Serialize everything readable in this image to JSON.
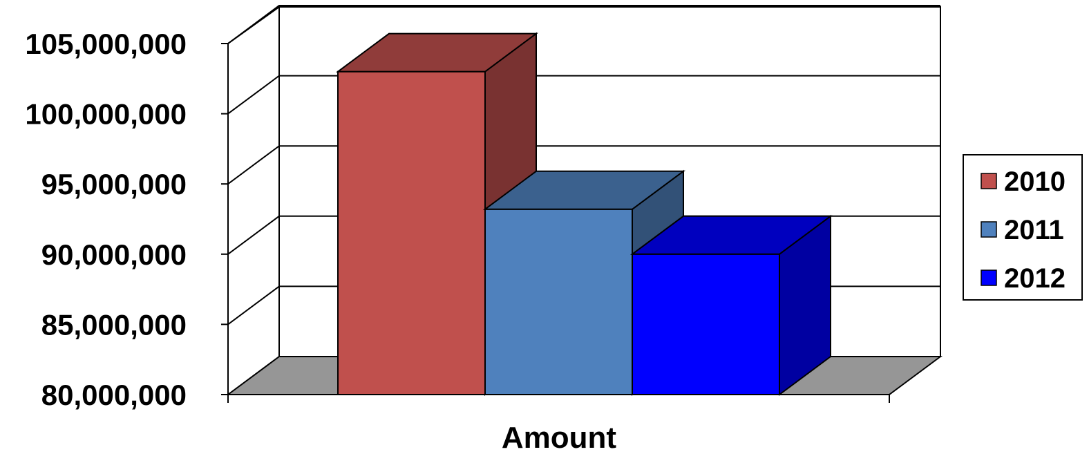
{
  "chart_data": {
    "type": "bar",
    "style": "3d-clustered-column",
    "categories": [
      "Amount"
    ],
    "series": [
      {
        "name": "2010",
        "values": [
          103000000
        ],
        "color": "#c0504d"
      },
      {
        "name": "2011",
        "values": [
          93200000
        ],
        "color": "#4f81bd"
      },
      {
        "name": "2012",
        "values": [
          90000000
        ],
        "color": "#0000ff"
      }
    ],
    "yticks": [
      "80,000,000",
      "85,000,000",
      "90,000,000",
      "95,000,000",
      "100,000,000",
      "105,000,000"
    ],
    "ytick_values": [
      80000000,
      85000000,
      90000000,
      95000000,
      100000000,
      105000000
    ],
    "ylim": [
      80000000,
      105000000
    ],
    "grid": true,
    "legend_position": "right",
    "floor_color": "#969696"
  }
}
